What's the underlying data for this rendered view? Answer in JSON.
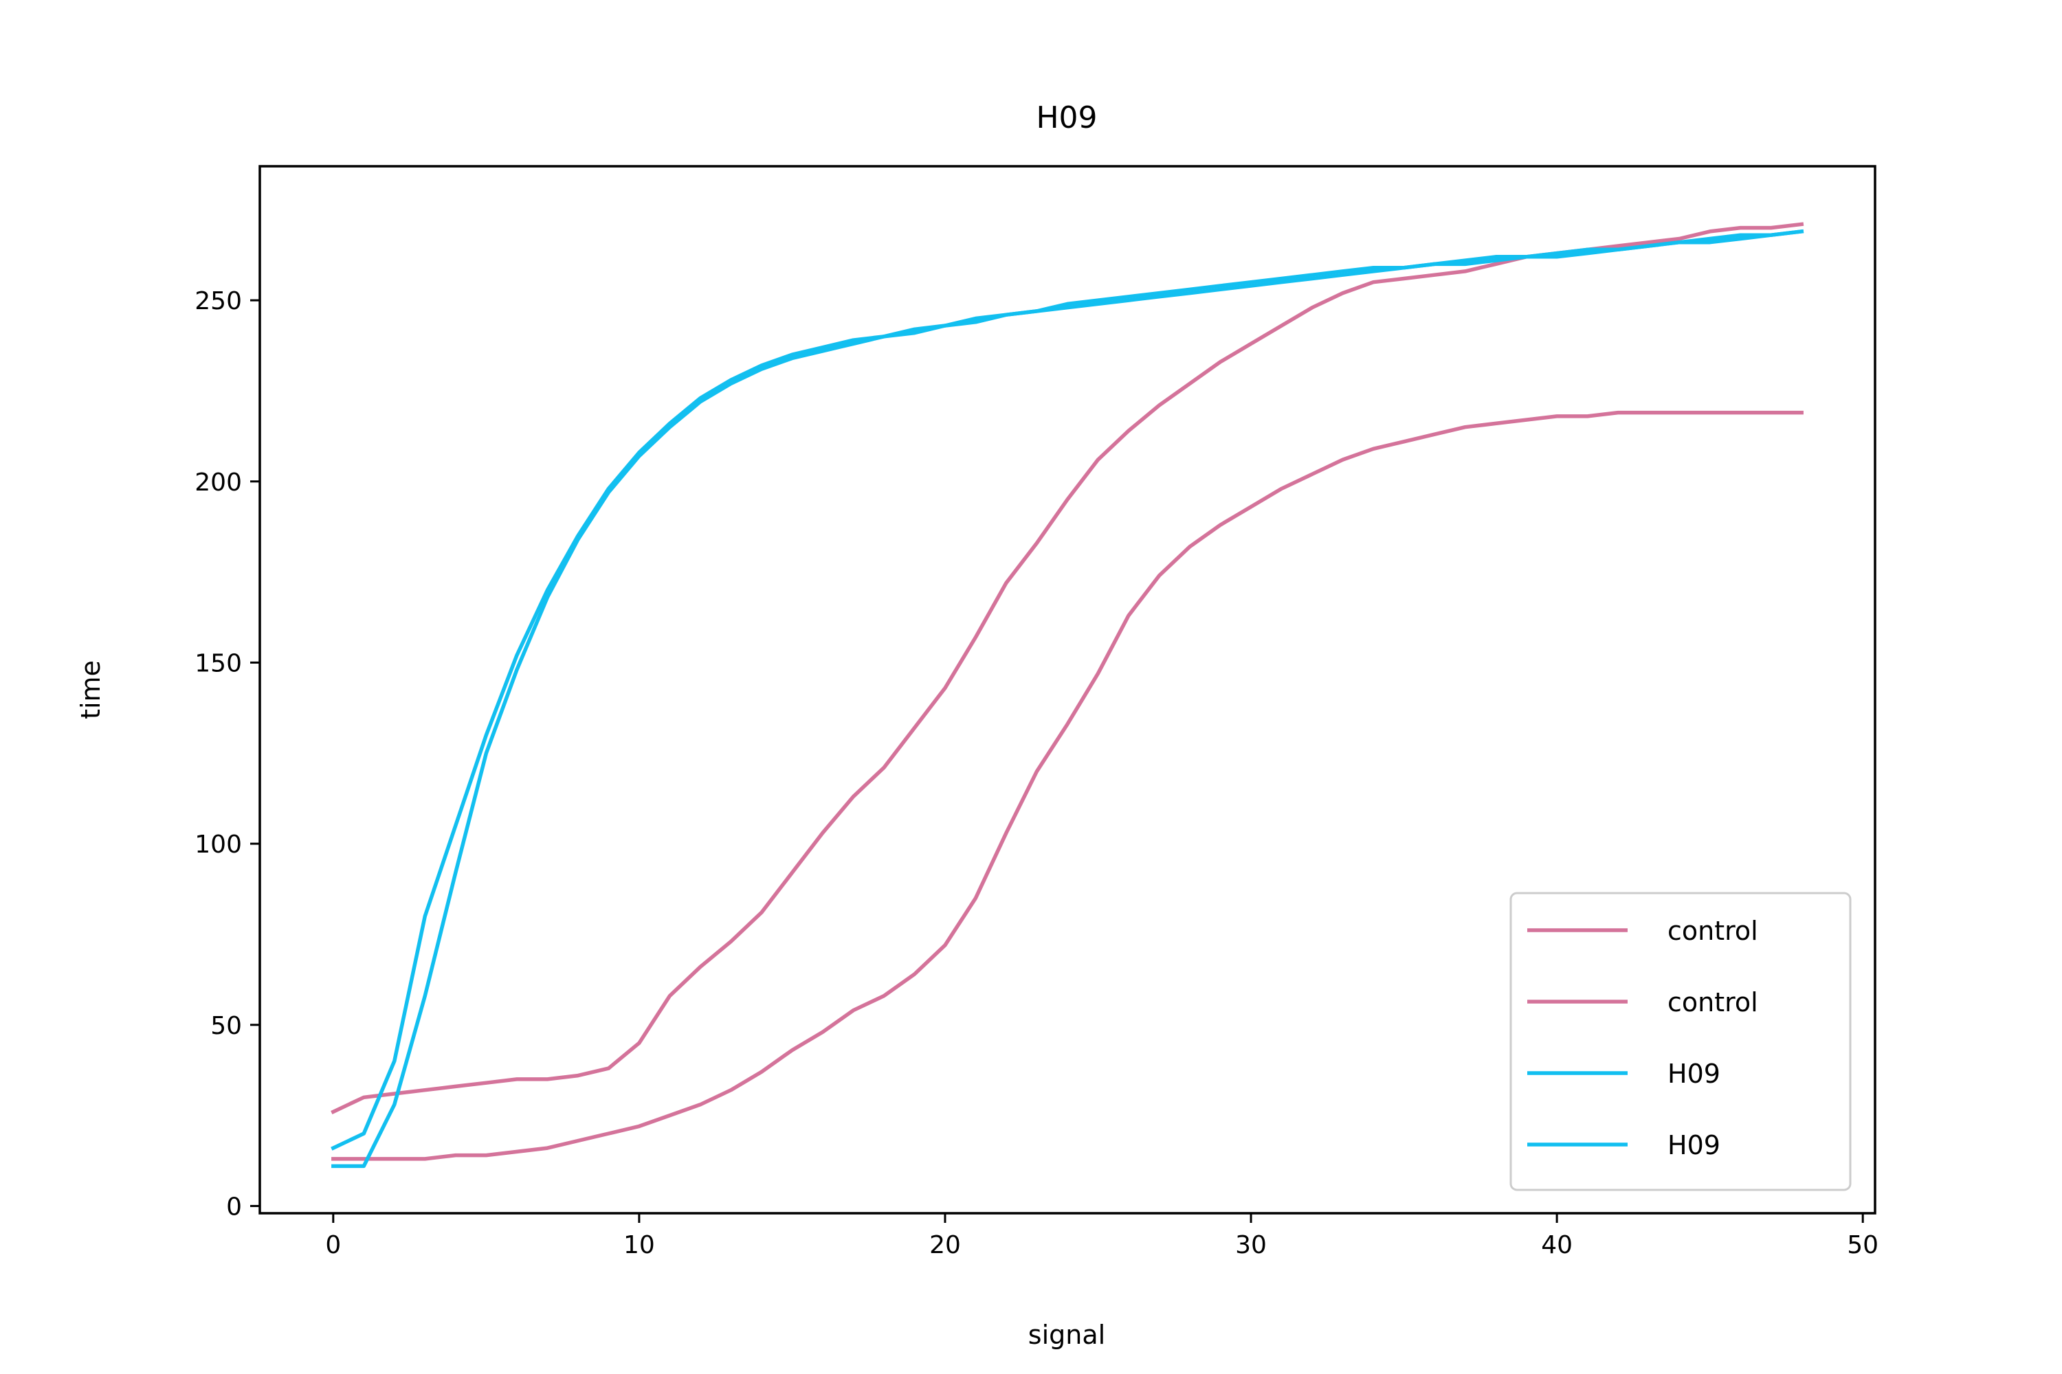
{
  "chart_data": {
    "type": "line",
    "title": "H09",
    "xlabel": "signal",
    "ylabel": "time",
    "xlim": [
      -2.4,
      50.4
    ],
    "ylim": [
      -2,
      287
    ],
    "xticks": [
      0,
      10,
      20,
      30,
      40,
      50
    ],
    "yticks": [
      0,
      50,
      100,
      150,
      200,
      250
    ],
    "grid": false,
    "legend_position": "bottom-right",
    "series": [
      {
        "name": "control",
        "color": "#d4739a",
        "x": [
          0,
          1,
          2,
          3,
          4,
          5,
          6,
          7,
          8,
          9,
          10,
          11,
          12,
          13,
          14,
          15,
          16,
          17,
          18,
          19,
          20,
          21,
          22,
          23,
          24,
          25,
          26,
          27,
          28,
          29,
          30,
          31,
          32,
          33,
          34,
          35,
          36,
          37,
          38,
          39,
          40,
          41,
          42,
          43,
          44,
          45,
          46,
          47,
          48
        ],
        "y": [
          26,
          30,
          31,
          32,
          33,
          34,
          35,
          35,
          36,
          38,
          45,
          58,
          66,
          73,
          81,
          92,
          103,
          113,
          121,
          132,
          143,
          157,
          172,
          183,
          195,
          206,
          214,
          221,
          227,
          233,
          238,
          243,
          248,
          252,
          255,
          256,
          257,
          258,
          260,
          262,
          263,
          264,
          265,
          266,
          267,
          269,
          270,
          270,
          271
        ]
      },
      {
        "name": "control",
        "color": "#d4739a",
        "x": [
          0,
          1,
          2,
          3,
          4,
          5,
          6,
          7,
          8,
          9,
          10,
          11,
          12,
          13,
          14,
          15,
          16,
          17,
          18,
          19,
          20,
          21,
          22,
          23,
          24,
          25,
          26,
          27,
          28,
          29,
          30,
          31,
          32,
          33,
          34,
          35,
          36,
          37,
          38,
          39,
          40,
          41,
          42,
          43,
          44,
          45,
          46,
          47,
          48
        ],
        "y": [
          13,
          13,
          13,
          13,
          14,
          14,
          15,
          16,
          18,
          20,
          22,
          25,
          28,
          32,
          37,
          43,
          48,
          54,
          58,
          64,
          72,
          85,
          103,
          120,
          133,
          147,
          163,
          174,
          182,
          188,
          193,
          198,
          202,
          206,
          209,
          211,
          213,
          215,
          216,
          217,
          218,
          218,
          219,
          219,
          219,
          219,
          219,
          219,
          219
        ]
      },
      {
        "name": "H09",
        "color": "#12bff0",
        "x": [
          0,
          1,
          2,
          3,
          4,
          5,
          6,
          7,
          8,
          9,
          10,
          11,
          12,
          13,
          14,
          15,
          16,
          17,
          18,
          19,
          20,
          21,
          22,
          23,
          24,
          25,
          26,
          27,
          28,
          29,
          30,
          31,
          32,
          33,
          34,
          35,
          36,
          37,
          38,
          39,
          40,
          41,
          42,
          43,
          44,
          45,
          46,
          47,
          48
        ],
        "y": [
          16,
          20,
          40,
          80,
          105,
          130,
          152,
          170,
          185,
          198,
          208,
          216,
          223,
          228,
          232,
          235,
          237,
          239,
          240,
          242,
          243,
          245,
          246,
          247,
          249,
          250,
          251,
          252,
          253,
          254,
          255,
          256,
          257,
          258,
          259,
          259,
          260,
          261,
          262,
          262,
          263,
          264,
          264,
          265,
          266,
          267,
          268,
          268,
          269
        ]
      },
      {
        "name": "H09",
        "color": "#12bff0",
        "x": [
          0,
          1,
          2,
          3,
          4,
          5,
          6,
          7,
          8,
          9,
          10,
          11,
          12,
          13,
          14,
          15,
          16,
          17,
          18,
          19,
          20,
          21,
          22,
          23,
          24,
          25,
          26,
          27,
          28,
          29,
          30,
          31,
          32,
          33,
          34,
          35,
          36,
          37,
          38,
          39,
          40,
          41,
          42,
          43,
          44,
          45,
          46,
          47,
          48
        ],
        "y": [
          11,
          11,
          28,
          58,
          92,
          125,
          148,
          168,
          184,
          197,
          207,
          215,
          222,
          227,
          231,
          234,
          236,
          238,
          240,
          241,
          243,
          244,
          246,
          247,
          248,
          249,
          250,
          251,
          252,
          253,
          254,
          255,
          256,
          257,
          258,
          259,
          260,
          260,
          261,
          262,
          262,
          263,
          264,
          265,
          266,
          266,
          267,
          268,
          269
        ]
      }
    ]
  }
}
